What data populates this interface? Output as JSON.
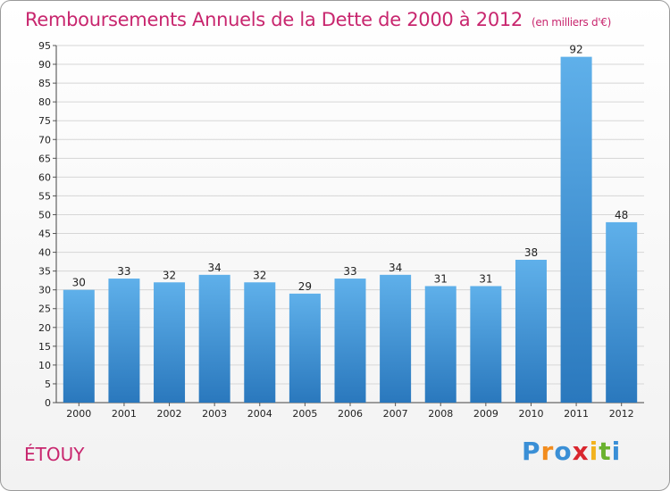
{
  "chart_data": {
    "type": "bar",
    "title": "Remboursements Annuels de la Dette de 2000 à 2012",
    "subtitle": "(en milliers d'€)",
    "categories": [
      "2000",
      "2001",
      "2002",
      "2003",
      "2004",
      "2005",
      "2006",
      "2007",
      "2008",
      "2009",
      "2010",
      "2011",
      "2012"
    ],
    "values": [
      30,
      33,
      32,
      34,
      32,
      29,
      33,
      34,
      31,
      31,
      38,
      92,
      48
    ],
    "ylim": [
      0,
      95
    ],
    "ytick_step": 5,
    "grid": true,
    "bar_color_top": "#5fb0ea",
    "bar_color_bottom": "#2a78bd"
  },
  "commune": "ÉTOUY",
  "logo": {
    "letters": [
      {
        "char": "P",
        "color": "#3a8fd6"
      },
      {
        "char": "r",
        "color": "#f28c1e"
      },
      {
        "char": "o",
        "color": "#3a8fd6"
      },
      {
        "char": "x",
        "color": "#d9262e"
      },
      {
        "char": "i",
        "color": "#f2b21e"
      },
      {
        "char": "t",
        "color": "#6ab22e"
      },
      {
        "char": "i",
        "color": "#3a8fd6"
      }
    ]
  }
}
